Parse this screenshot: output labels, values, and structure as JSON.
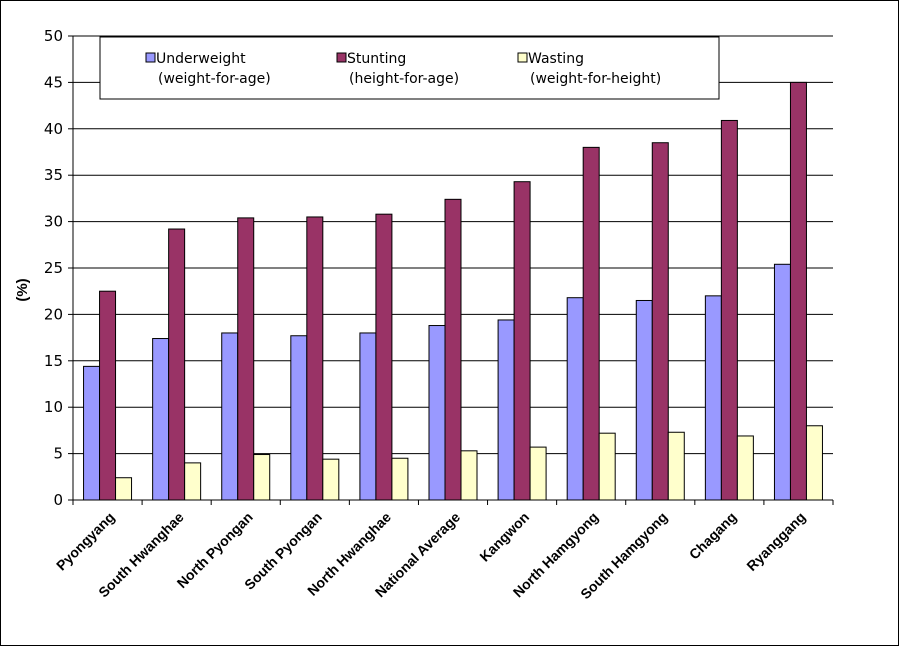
{
  "chart_data": {
    "type": "bar",
    "title": "",
    "xlabel": "",
    "ylabel": "(%)",
    "ylim": [
      0,
      50
    ],
    "yticks": [
      0,
      5,
      10,
      15,
      20,
      25,
      30,
      35,
      40,
      45,
      50
    ],
    "grid": true,
    "legend_position": "top",
    "categories": [
      "Pyongyang",
      "South Hwanghae",
      "North Pyongan",
      "South Pyongan",
      "North Hwanghae",
      "National Average",
      "Kangwon",
      "North Hamgyong",
      "South Hamgyong",
      "Chagang",
      "Ryanggang"
    ],
    "series": [
      {
        "name": "Underweight",
        "sub": "(weight-for-age)",
        "color": "#9999ff",
        "values": [
          14.4,
          17.4,
          18.0,
          17.7,
          18.0,
          18.8,
          19.4,
          21.8,
          21.5,
          22.0,
          25.4
        ]
      },
      {
        "name": "Stunting",
        "sub": "(height-for-age)",
        "color": "#993366",
        "values": [
          22.5,
          29.2,
          30.4,
          30.5,
          30.8,
          32.4,
          34.3,
          38.0,
          38.5,
          40.9,
          45.0
        ]
      },
      {
        "name": "Wasting",
        "sub": "(weight-for-height)",
        "color": "#ffffcc",
        "values": [
          2.4,
          4.0,
          4.9,
          4.4,
          4.5,
          5.3,
          5.7,
          7.2,
          7.3,
          6.9,
          8.0
        ]
      }
    ]
  }
}
